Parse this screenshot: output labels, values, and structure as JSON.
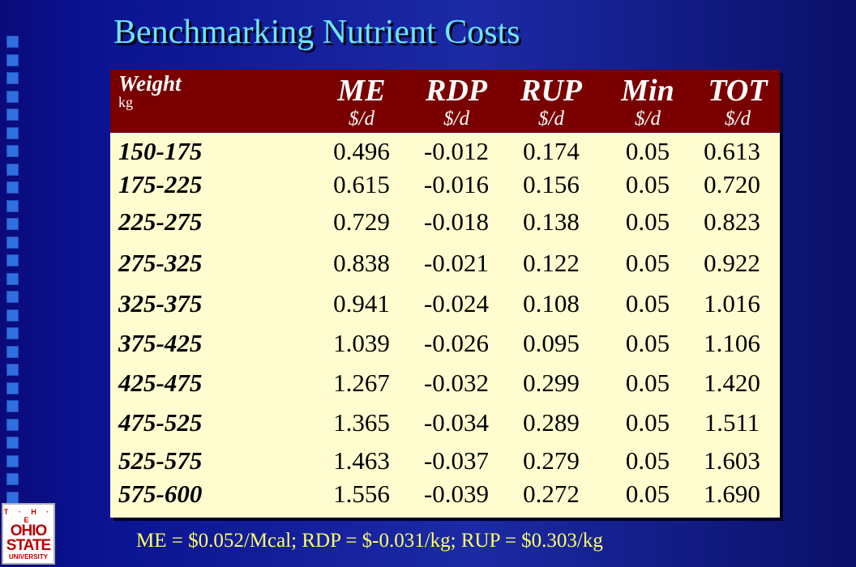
{
  "slide": {
    "title": "Benchmarking Nutrient Costs",
    "footnote": "ME = $0.052/Mcal; RDP = $-0.031/kg; RUP = $0.303/kg"
  },
  "logo": {
    "line1": "T · H · E",
    "line2": "OHIO",
    "line3": "STATE",
    "line4": "UNIVERSITY"
  },
  "table": {
    "weight_header": "Weight",
    "weight_unit": "kg",
    "columns": [
      {
        "name": "ME",
        "unit": "$/d"
      },
      {
        "name": "RDP",
        "unit": "$/d"
      },
      {
        "name": "RUP",
        "unit": "$/d"
      },
      {
        "name": "Min",
        "unit": "$/d"
      },
      {
        "name": "TOT",
        "unit": "$/d"
      }
    ],
    "rows": [
      {
        "weight": "150-175",
        "values": [
          "0.496",
          "-0.012",
          "0.174",
          "0.05",
          "0.613"
        ]
      },
      {
        "weight": "175-225",
        "values": [
          "0.615",
          "-0.016",
          "0.156",
          "0.05",
          "0.720"
        ]
      },
      {
        "weight": "225-275",
        "values": [
          "0.729",
          "-0.018",
          "0.138",
          "0.05",
          "0.823"
        ]
      },
      {
        "weight": "275-325",
        "values": [
          "0.838",
          "-0.021",
          "0.122",
          "0.05",
          "0.922"
        ]
      },
      {
        "weight": "325-375",
        "values": [
          "0.941",
          "-0.024",
          "0.108",
          "0.05",
          "1.016"
        ]
      },
      {
        "weight": "375-425",
        "values": [
          "1.039",
          "-0.026",
          "0.095",
          "0.05",
          "1.106"
        ]
      },
      {
        "weight": "425-475",
        "values": [
          "1.267",
          "-0.032",
          "0.299",
          "0.05",
          "1.420"
        ]
      },
      {
        "weight": "475-525",
        "values": [
          "1.365",
          "-0.034",
          "0.289",
          "0.05",
          "1.511"
        ]
      },
      {
        "weight": "525-575",
        "values": [
          "1.463",
          "-0.037",
          "0.279",
          "0.05",
          "1.603"
        ]
      },
      {
        "weight": "575-600",
        "values": [
          "1.556",
          "-0.039",
          "0.272",
          "0.05",
          "1.690"
        ]
      }
    ]
  },
  "colors": {
    "title": "#6ce4ff",
    "header_bg": "#7a0000",
    "table_bg": "#fffdd0",
    "footnote": "#ffff66",
    "accent_squares": "#2f6fe0"
  }
}
